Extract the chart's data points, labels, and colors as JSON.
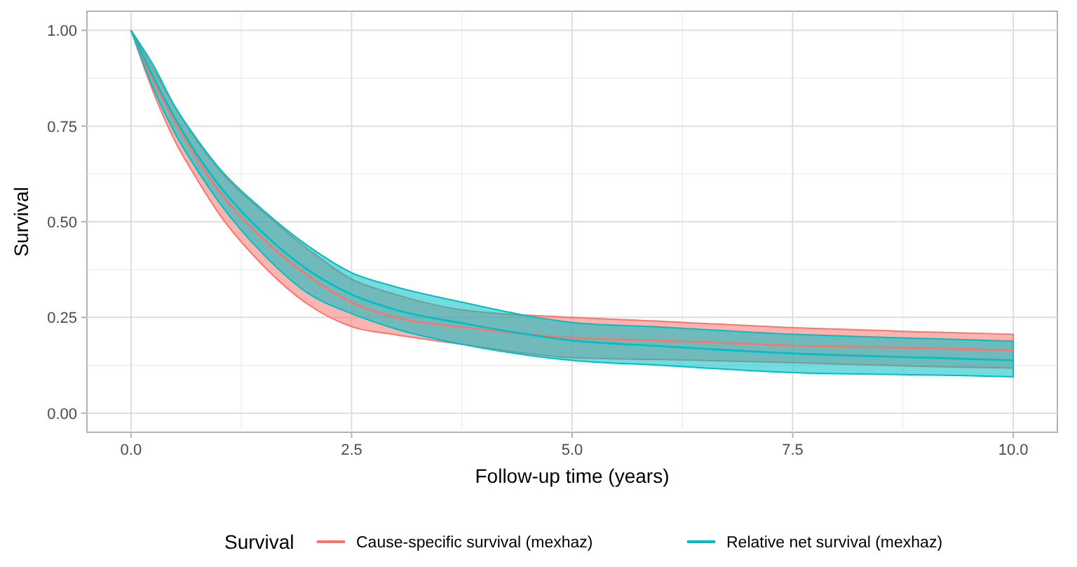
{
  "chart_data": {
    "type": "line",
    "xlabel": "Follow-up time (years)",
    "ylabel": "Survival",
    "legend_title": "Survival",
    "legend": "bottom",
    "grid": true,
    "xlim": [
      -0.5,
      10.5
    ],
    "ylim": [
      -0.05,
      1.05
    ],
    "xticks": [
      {
        "value": 0,
        "label": "0.0"
      },
      {
        "value": 2.5,
        "label": "2.5"
      },
      {
        "value": 5,
        "label": "5.0"
      },
      {
        "value": 7.5,
        "label": "7.5"
      },
      {
        "value": 10,
        "label": "10.0"
      }
    ],
    "yticks": [
      {
        "value": 0,
        "label": "0.00"
      },
      {
        "value": 0.25,
        "label": "0.25"
      },
      {
        "value": 0.5,
        "label": "0.50"
      },
      {
        "value": 0.75,
        "label": "0.75"
      },
      {
        "value": 1,
        "label": "1.00"
      }
    ],
    "x": [
      0,
      0.25,
      0.5,
      0.75,
      1,
      1.5,
      2,
      2.5,
      3,
      3.75,
      5,
      6,
      7.5,
      9,
      10
    ],
    "series": [
      {
        "name": "Cause-specific survival (mexhaz)",
        "color": "#f8766d",
        "values": [
          1,
          0.87,
          0.76,
          0.665,
          0.58,
          0.455,
          0.36,
          0.29,
          0.25,
          0.225,
          0.197,
          0.19,
          0.177,
          0.17,
          0.164
        ],
        "lower": [
          1,
          0.84,
          0.71,
          0.61,
          0.52,
          0.385,
          0.285,
          0.226,
          0.205,
          0.18,
          0.145,
          0.14,
          0.132,
          0.122,
          0.118
        ],
        "upper": [
          1,
          0.9,
          0.8,
          0.71,
          0.635,
          0.525,
          0.43,
          0.35,
          0.31,
          0.27,
          0.25,
          0.24,
          0.223,
          0.212,
          0.206
        ]
      },
      {
        "name": "Relative net survival (mexhaz)",
        "color": "#00bfc4",
        "values": [
          1,
          0.88,
          0.77,
          0.675,
          0.595,
          0.47,
          0.375,
          0.31,
          0.27,
          0.235,
          0.19,
          0.175,
          0.156,
          0.145,
          0.138
        ],
        "lower": [
          1,
          0.85,
          0.73,
          0.635,
          0.55,
          0.415,
          0.314,
          0.26,
          0.22,
          0.18,
          0.138,
          0.125,
          0.106,
          0.1,
          0.095
        ],
        "upper": [
          1,
          0.91,
          0.8,
          0.715,
          0.64,
          0.53,
          0.438,
          0.367,
          0.33,
          0.29,
          0.237,
          0.225,
          0.206,
          0.195,
          0.188
        ]
      }
    ]
  }
}
